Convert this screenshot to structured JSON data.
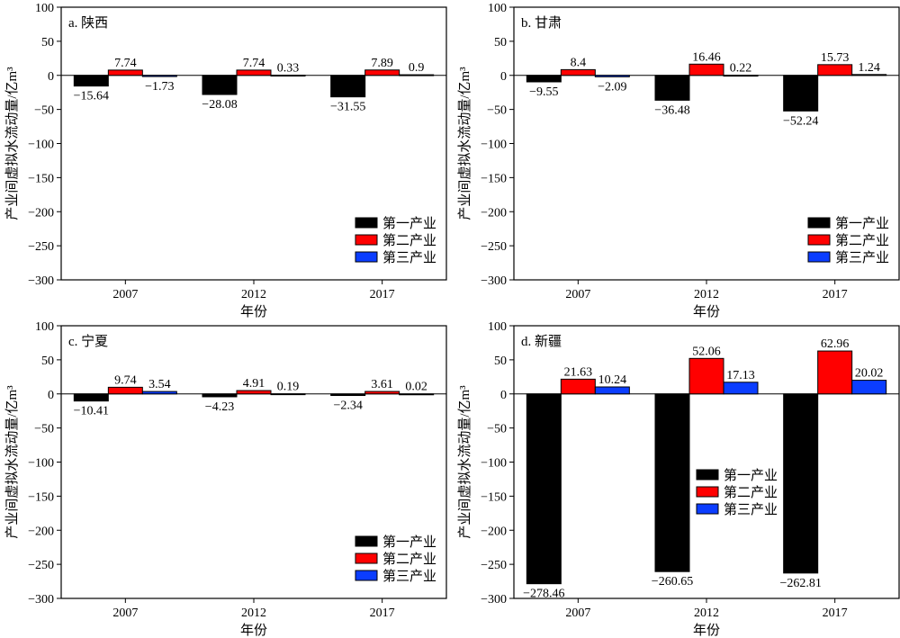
{
  "chart_data": [
    {
      "type": "bar",
      "title": "a. 陕西",
      "xlabel": "年份",
      "ylabel": "产业间虚拟水流动量/亿m³",
      "categories": [
        "2007",
        "2012",
        "2017"
      ],
      "ylim": [
        -300,
        100
      ],
      "yticks": [
        "100",
        "50",
        "0",
        "−50",
        "−100",
        "−150",
        "−200",
        "−250",
        "−300"
      ],
      "series": [
        {
          "name": "第一产业",
          "color": "#000000",
          "values": [
            -15.64,
            -28.08,
            -31.55
          ],
          "labels": [
            "−15.64",
            "−28.08",
            "−31.55"
          ]
        },
        {
          "name": "第二产业",
          "color": "#ff0000",
          "values": [
            7.74,
            7.74,
            7.89
          ],
          "labels": [
            "7.74",
            "7.74",
            "7.89"
          ]
        },
        {
          "name": "第三产业",
          "color": "#0b3dff",
          "values": [
            -1.73,
            0.33,
            0.9
          ],
          "labels": [
            "−1.73",
            "0.33",
            "0.9"
          ]
        }
      ],
      "legend": "bottom-right"
    },
    {
      "type": "bar",
      "title": "b. 甘肃",
      "xlabel": "年份",
      "ylabel": "产业间虚拟水流动量/亿m³",
      "categories": [
        "2007",
        "2012",
        "2017"
      ],
      "ylim": [
        -300,
        100
      ],
      "yticks": [
        "100",
        "50",
        "0",
        "−50",
        "−100",
        "−150",
        "−200",
        "−250",
        "−300"
      ],
      "series": [
        {
          "name": "第一产业",
          "color": "#000000",
          "values": [
            -9.55,
            -36.48,
            -52.24
          ],
          "labels": [
            "−9.55",
            "−36.48",
            "−52.24"
          ]
        },
        {
          "name": "第二产业",
          "color": "#ff0000",
          "values": [
            8.4,
            16.46,
            15.73
          ],
          "labels": [
            "8.4",
            "16.46",
            "15.73"
          ]
        },
        {
          "name": "第三产业",
          "color": "#0b3dff",
          "values": [
            -2.09,
            0.22,
            1.24
          ],
          "labels": [
            "−2.09",
            "0.22",
            "1.24"
          ]
        }
      ],
      "legend": "bottom-right"
    },
    {
      "type": "bar",
      "title": "c. 宁夏",
      "xlabel": "年份",
      "ylabel": "产业间虚拟水流动量/亿m³",
      "categories": [
        "2007",
        "2012",
        "2017"
      ],
      "ylim": [
        -300,
        100
      ],
      "yticks": [
        "100",
        "50",
        "0",
        "−50",
        "−100",
        "−150",
        "−200",
        "−250",
        "−300"
      ],
      "series": [
        {
          "name": "第一产业",
          "color": "#000000",
          "values": [
            -10.41,
            -4.23,
            -2.34
          ],
          "labels": [
            "−10.41",
            "−4.23",
            "−2.34"
          ]
        },
        {
          "name": "第二产业",
          "color": "#ff0000",
          "values": [
            9.74,
            4.91,
            3.61
          ],
          "labels": [
            "9.74",
            "4.91",
            "3.61"
          ]
        },
        {
          "name": "第三产业",
          "color": "#0b3dff",
          "values": [
            3.54,
            0.19,
            0.02
          ],
          "labels": [
            "3.54",
            "0.19",
            "0.02"
          ]
        }
      ],
      "legend": "bottom-right"
    },
    {
      "type": "bar",
      "title": "d. 新疆",
      "xlabel": "年份",
      "ylabel": "产业间虚拟水流动量/亿m³",
      "categories": [
        "2007",
        "2012",
        "2017"
      ],
      "ylim": [
        -300,
        100
      ],
      "yticks": [
        "100",
        "50",
        "0",
        "−50",
        "−100",
        "−150",
        "−200",
        "−250",
        "−300"
      ],
      "series": [
        {
          "name": "第一产业",
          "color": "#000000",
          "values": [
            -278.46,
            -260.65,
            -262.81
          ],
          "labels": [
            "−278.46",
            "−260.65",
            "−262.81"
          ]
        },
        {
          "name": "第二产业",
          "color": "#ff0000",
          "values": [
            21.63,
            52.06,
            62.96
          ],
          "labels": [
            "21.63",
            "52.06",
            "62.96"
          ]
        },
        {
          "name": "第三产业",
          "color": "#0b3dff",
          "values": [
            10.24,
            17.13,
            20.02
          ],
          "labels": [
            "10.24",
            "17.13",
            "20.02"
          ]
        }
      ],
      "legend": "center-right"
    }
  ]
}
